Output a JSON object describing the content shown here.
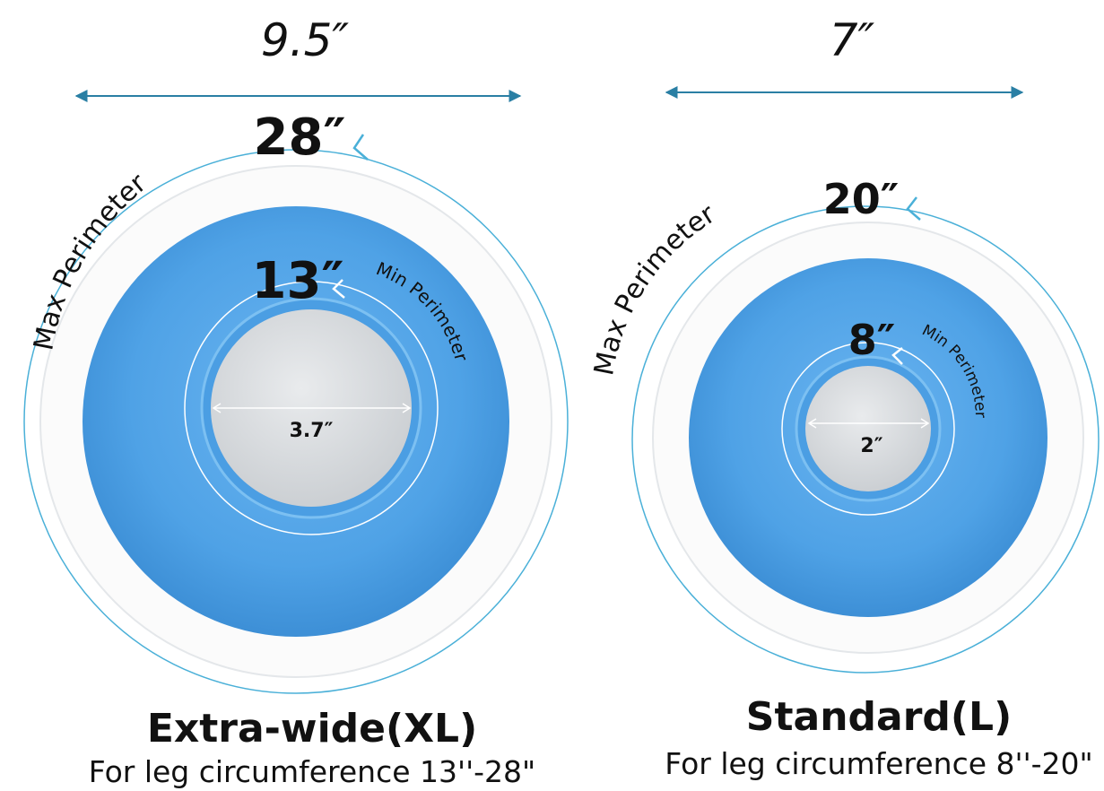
{
  "xl": {
    "width": "9.5″",
    "max_perimeter_value": "28″",
    "max_perimeter_label": "Max Perimeter",
    "min_perimeter_value": "13″",
    "min_perimeter_label": "Min Perimeter",
    "inner_diameter": "3.7″",
    "title": "Extra-wide(XL)",
    "subtitle": "For leg circumference 13''-28\""
  },
  "std": {
    "width": "7″",
    "max_perimeter_value": "20″",
    "max_perimeter_label": "Max Perimeter",
    "min_perimeter_value": "8″",
    "min_perimeter_label": "Min Perimeter",
    "inner_diameter": "2″",
    "title": "Standard(L)",
    "subtitle": "For leg circumference 8''-20\""
  },
  "colors": {
    "blue_body": "#5aa8ea",
    "arrow": "#2a7fa4",
    "perimeter_line": "#4ab0d8",
    "seal_gray": "#d9dcdf"
  }
}
